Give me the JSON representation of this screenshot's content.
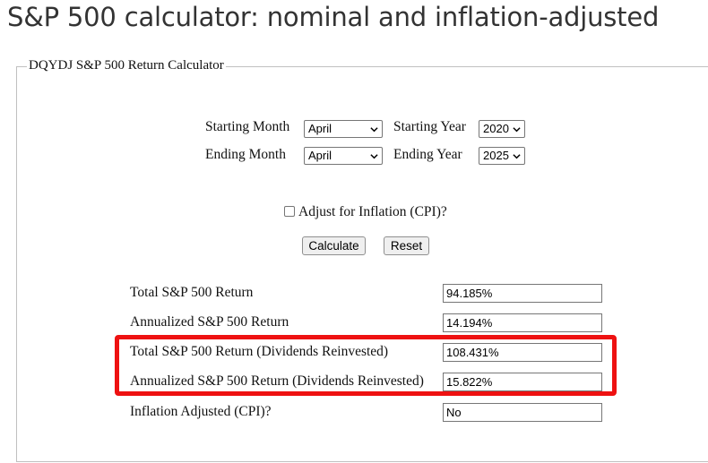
{
  "page": {
    "title": "S&P 500 calculator: nominal and inflation-adjusted"
  },
  "calculator": {
    "legend": "DQYDJ S&P 500 Return Calculator",
    "starting_month_label": "Starting Month",
    "starting_month_value": "April",
    "starting_year_label": "Starting Year",
    "starting_year_value": "2020",
    "ending_month_label": "Ending Month",
    "ending_month_value": "April",
    "ending_year_label": "Ending Year",
    "ending_year_value": "2025",
    "inflation_label": "Adjust for Inflation (CPI)?",
    "inflation_checked": false,
    "calculate_label": "Calculate",
    "reset_label": "Reset"
  },
  "results": [
    {
      "label": "Total S&P 500 Return",
      "value": "94.185%"
    },
    {
      "label": "Annualized S&P 500 Return",
      "value": "14.194%"
    },
    {
      "label": "Total S&P 500 Return (Dividends Reinvested)",
      "value": "108.431%"
    },
    {
      "label": "Annualized S&P 500 Return (Dividends Reinvested)",
      "value": "15.822%"
    },
    {
      "label": "Inflation Adjusted (CPI)?",
      "value": "No"
    }
  ],
  "annotation": {
    "highlight_color": "#ee1111"
  }
}
